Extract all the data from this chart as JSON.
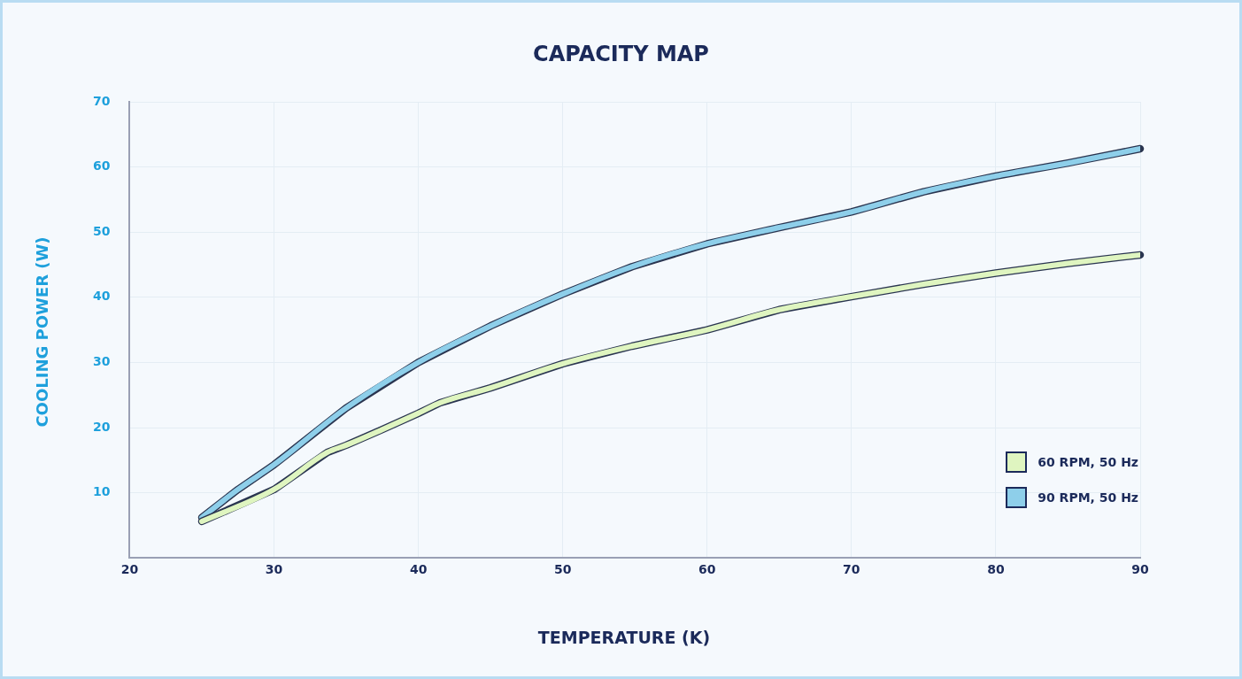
{
  "chart_data": {
    "type": "line",
    "title": "CAPACITY MAP",
    "xlabel": "TEMPERATURE (K)",
    "ylabel": "COOLING POWER (W)",
    "xlim": [
      20,
      90
    ],
    "xticks": [
      20,
      30,
      40,
      50,
      60,
      70,
      80,
      90
    ],
    "ylim": [
      0,
      70
    ],
    "yticks": [
      10,
      20,
      30,
      40,
      50,
      60,
      70
    ],
    "grid": true,
    "legend": "bottom right",
    "marker": "none",
    "line_style": "solid",
    "series": [
      {
        "name": "60 RPM, 50 Hz",
        "color": "#dff5c0",
        "x": [
          25,
          30,
          33.7,
          35,
          37.5,
          40,
          41.5,
          45,
          50,
          54.8,
          60,
          65,
          70,
          75,
          80,
          85,
          90
        ],
        "values": [
          5.6,
          10.5,
          16.2,
          17.3,
          19.7,
          22.2,
          23.8,
          26.1,
          29.8,
          32.5,
          35.0,
          38.1,
          40.1,
          42.0,
          43.7,
          45.2,
          46.5
        ]
      },
      {
        "name": "90 RPM, 50 Hz",
        "color": "#8ecfea",
        "x": [
          25,
          27.5,
          30,
          35,
          40,
          45,
          50,
          54.8,
          60,
          65,
          70,
          75,
          80,
          85,
          90
        ],
        "values": [
          6.2,
          10.5,
          14.3,
          23.0,
          30.0,
          35.6,
          40.5,
          44.7,
          48.2,
          50.7,
          53.1,
          56.2,
          58.6,
          60.6,
          62.8
        ]
      }
    ]
  }
}
